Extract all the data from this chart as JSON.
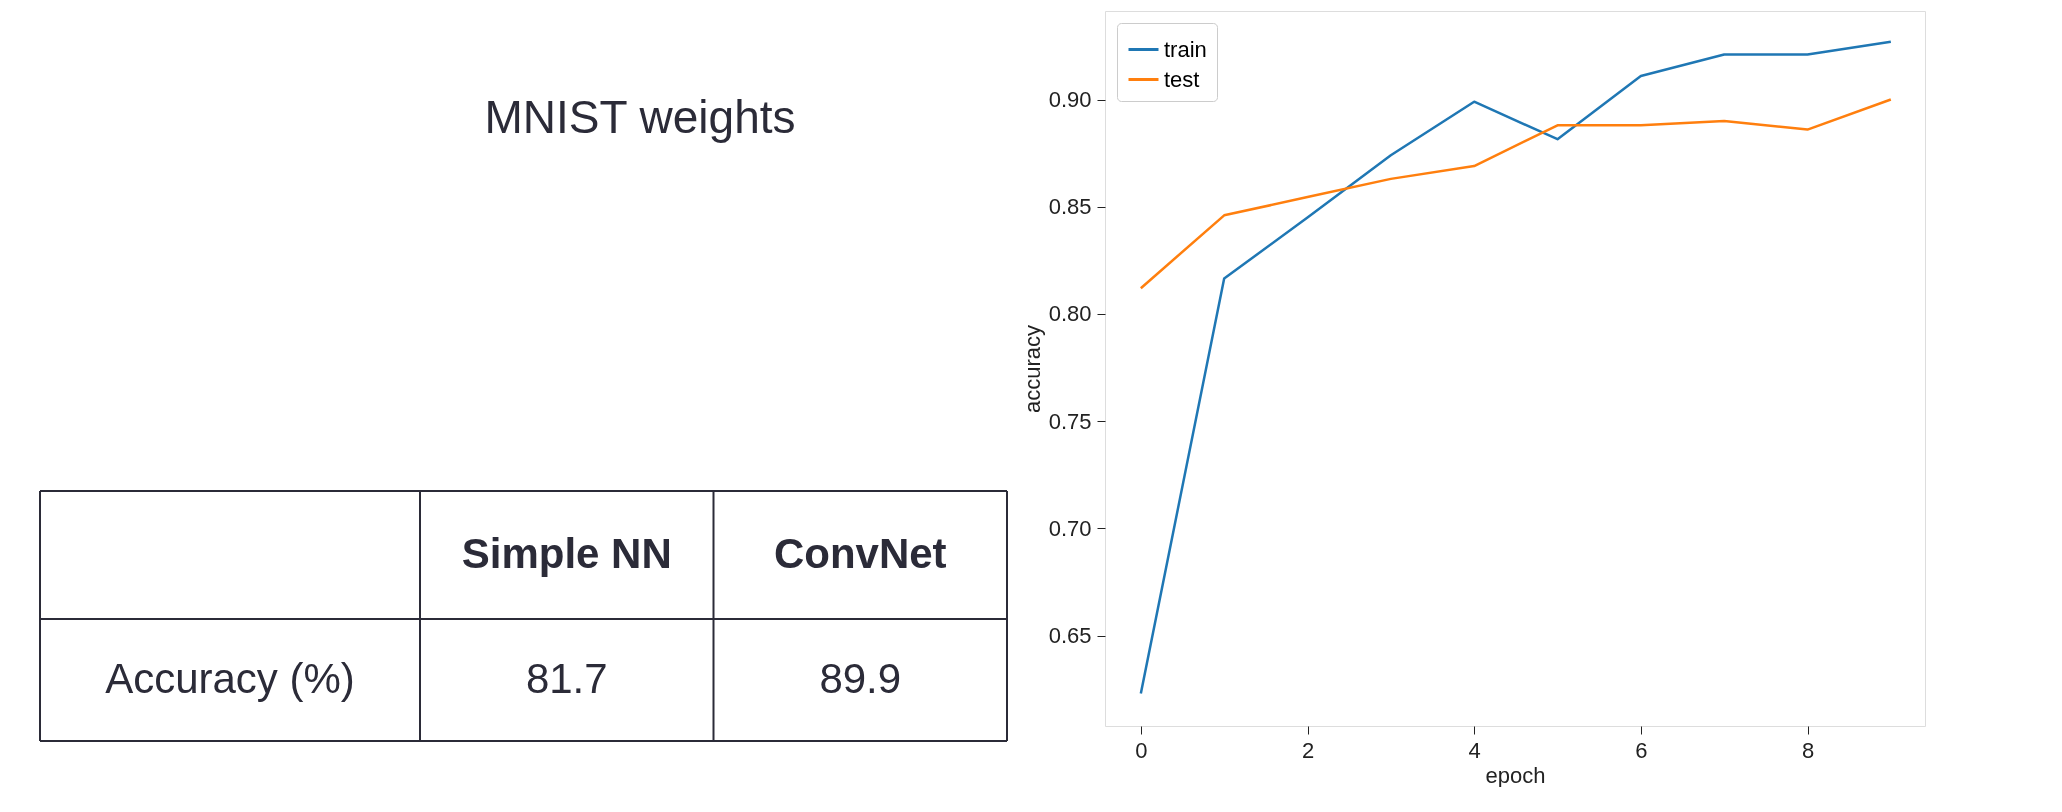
{
  "chart_data": [
    {
      "type": "other",
      "title": "MNIST weights",
      "categories": [
        "Simple NN",
        "ConvNet"
      ],
      "ylabel": "Accuracy (%)",
      "values": [
        81.7,
        89.9
      ],
      "data_labels": true
    },
    {
      "type": "line",
      "xlabel": "epoch",
      "ylabel": "accuracy",
      "x": [
        0,
        1,
        2,
        3,
        4,
        5,
        6,
        7,
        8,
        9
      ],
      "series": [
        {
          "name": "train",
          "color": "#1f77b4",
          "values": [
            0.623,
            0.8165,
            0.845,
            0.874,
            0.899,
            0.8815,
            0.911,
            0.921,
            0.921,
            0.927
          ]
        },
        {
          "name": "test",
          "color": "#ff7f0e",
          "values": [
            0.812,
            0.846,
            0.8545,
            0.863,
            0.869,
            0.888,
            0.888,
            0.89,
            0.886,
            0.9
          ]
        }
      ],
      "xlim": [
        -0.43,
        9.41
      ],
      "ylim": [
        0.6078,
        0.9413
      ],
      "xticks": [
        0,
        2,
        4,
        6,
        8
      ],
      "yticks": [
        0.65,
        {
          "value": 0.7,
          "label": "0.70"
        },
        0.75,
        {
          "value": 0.8,
          "label": "0.80"
        },
        0.85,
        {
          "value": 0.9,
          "label": "0.90"
        }
      ],
      "legend": "top left",
      "grid": false,
      "marker": "none",
      "line_style": "solid"
    }
  ]
}
